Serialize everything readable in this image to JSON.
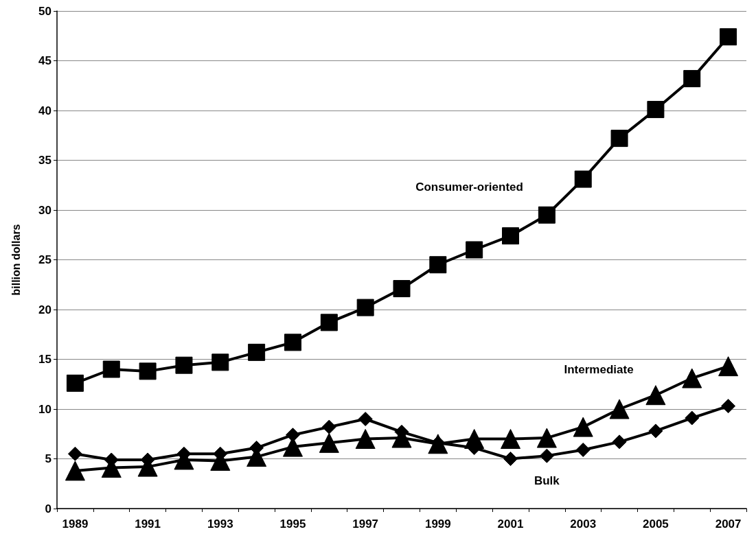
{
  "chart_data": {
    "type": "line",
    "ylabel": "billion dollars",
    "categories": [
      "1989",
      null,
      "1991",
      null,
      "1993",
      null,
      "1995",
      null,
      "1997",
      null,
      "1999",
      null,
      "2001",
      null,
      "2003",
      null,
      "2005",
      null,
      "2007"
    ],
    "series": [
      {
        "name": "Consumer-oriented",
        "color": "#000000",
        "marker": "square",
        "values": [
          12.6,
          14.0,
          13.8,
          14.4,
          14.7,
          15.7,
          16.7,
          18.7,
          20.2,
          22.1,
          24.5,
          26.0,
          27.4,
          29.5,
          33.1,
          37.2,
          40.1,
          43.2,
          47.4
        ]
      },
      {
        "name": "Intermediate",
        "color": "#000000",
        "marker": "triangle",
        "values": [
          3.8,
          4.1,
          4.2,
          4.9,
          4.8,
          5.2,
          6.2,
          6.6,
          7.0,
          7.1,
          6.5,
          7.0,
          7.0,
          7.1,
          8.2,
          10.0,
          11.4,
          13.1,
          14.3
        ]
      },
      {
        "name": "Bulk",
        "color": "#000000",
        "marker": "diamond",
        "values": [
          5.5,
          4.9,
          4.9,
          5.5,
          5.5,
          6.1,
          7.4,
          8.2,
          9.0,
          7.7,
          6.6,
          6.1,
          5.0,
          5.3,
          5.9,
          6.7,
          7.8,
          9.1,
          10.3
        ]
      }
    ],
    "ylim": [
      0,
      50
    ],
    "yticks": [
      0,
      5,
      10,
      15,
      20,
      25,
      30,
      35,
      40,
      45,
      50
    ],
    "grid": "y",
    "legend": false,
    "line_style": "solid"
  }
}
